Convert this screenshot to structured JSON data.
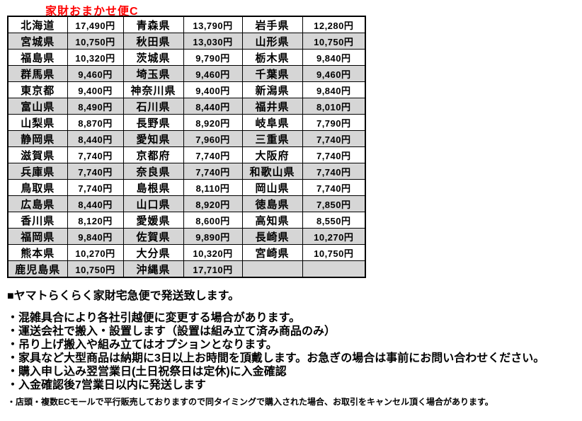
{
  "title": "家財おまかせ便C",
  "colors": {
    "title": "#FF0000",
    "alt_row": "#D6D6D6",
    "border": "#000000"
  },
  "table": {
    "rows": [
      [
        {
          "pref": "北海道",
          "price": "17,490円"
        },
        {
          "pref": "青森県",
          "price": "13,790円"
        },
        {
          "pref": "岩手県",
          "price": "12,280円"
        }
      ],
      [
        {
          "pref": "宮城県",
          "price": "10,750円"
        },
        {
          "pref": "秋田県",
          "price": "13,030円"
        },
        {
          "pref": "山形県",
          "price": "10,750円"
        }
      ],
      [
        {
          "pref": "福島県",
          "price": "10,320円"
        },
        {
          "pref": "茨城県",
          "price": "9,790円"
        },
        {
          "pref": "栃木県",
          "price": "9,840円"
        }
      ],
      [
        {
          "pref": "群馬県",
          "price": "9,460円"
        },
        {
          "pref": "埼玉県",
          "price": "9,460円"
        },
        {
          "pref": "千葉県",
          "price": "9,460円"
        }
      ],
      [
        {
          "pref": "東京都",
          "price": "9,400円"
        },
        {
          "pref": "神奈川県",
          "price": "9,400円"
        },
        {
          "pref": "新潟県",
          "price": "9,840円"
        }
      ],
      [
        {
          "pref": "富山県",
          "price": "8,490円"
        },
        {
          "pref": "石川県",
          "price": "8,440円"
        },
        {
          "pref": "福井県",
          "price": "8,010円"
        }
      ],
      [
        {
          "pref": "山梨県",
          "price": "8,870円"
        },
        {
          "pref": "長野県",
          "price": "8,920円"
        },
        {
          "pref": "岐阜県",
          "price": "7,790円"
        }
      ],
      [
        {
          "pref": "静岡県",
          "price": "8,440円"
        },
        {
          "pref": "愛知県",
          "price": "7,960円"
        },
        {
          "pref": "三重県",
          "price": "7,740円"
        }
      ],
      [
        {
          "pref": "滋賀県",
          "price": "7,740円"
        },
        {
          "pref": "京都府",
          "price": "7,740円"
        },
        {
          "pref": "大阪府",
          "price": "7,740円"
        }
      ],
      [
        {
          "pref": "兵庫県",
          "price": "7,740円"
        },
        {
          "pref": "奈良県",
          "price": "7,740円"
        },
        {
          "pref": "和歌山県",
          "price": "7,740円"
        }
      ],
      [
        {
          "pref": "鳥取県",
          "price": "7,740円"
        },
        {
          "pref": "島根県",
          "price": "8,110円"
        },
        {
          "pref": "岡山県",
          "price": "7,740円"
        }
      ],
      [
        {
          "pref": "広島県",
          "price": "8,440円"
        },
        {
          "pref": "山口県",
          "price": "8,920円"
        },
        {
          "pref": "徳島県",
          "price": "7,850円"
        }
      ],
      [
        {
          "pref": "香川県",
          "price": "8,120円"
        },
        {
          "pref": "愛媛県",
          "price": "8,600円"
        },
        {
          "pref": "高知県",
          "price": "8,550円"
        }
      ],
      [
        {
          "pref": "福岡県",
          "price": "9,840円"
        },
        {
          "pref": "佐賀県",
          "price": "9,890円"
        },
        {
          "pref": "長崎県",
          "price": "10,270円"
        }
      ],
      [
        {
          "pref": "熊本県",
          "price": "10,270円"
        },
        {
          "pref": "大分県",
          "price": "10,320円"
        },
        {
          "pref": "宮崎県",
          "price": "10,750円"
        }
      ],
      [
        {
          "pref": "鹿児島県",
          "price": "10,750円"
        },
        {
          "pref": "沖縄県",
          "price": "17,710円"
        },
        null
      ]
    ]
  },
  "notes": {
    "heading": "■ヤマトらくらく家財宅急便で発送致します。",
    "bullets": [
      "・混雑具合により各社引越便に変更する場合があります。",
      "・運送会社で搬入・設置します（設置は組み立て済み商品のみ）",
      "・吊り上げ搬入や組み立てはオプションとなります。",
      "・家具など大型商品は納期に3日以上お時間を頂戴します。お急ぎの場合は事前にお問い合わせください。",
      "・購入申し込み翌営業日(土日祝祭日は定休)に入金確認",
      "・入金確認後7営業日以内に発送します"
    ],
    "footnote": "・店頭・複数ECモールで平行販売しておりますので同タイミングで購入された場合、お取引をキャンセル頂く場合があります。"
  }
}
